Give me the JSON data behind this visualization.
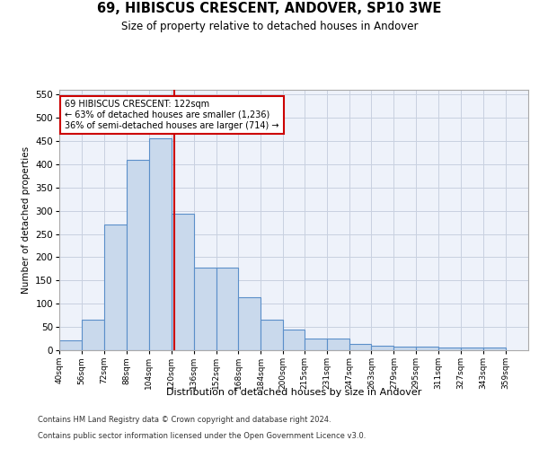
{
  "title": "69, HIBISCUS CRESCENT, ANDOVER, SP10 3WE",
  "subtitle": "Size of property relative to detached houses in Andover",
  "xlabel": "Distribution of detached houses by size in Andover",
  "ylabel": "Number of detached properties",
  "footnote1": "Contains HM Land Registry data © Crown copyright and database right 2024.",
  "footnote2": "Contains public sector information licensed under the Open Government Licence v3.0.",
  "bar_left_edges": [
    40,
    56,
    72,
    88,
    104,
    120,
    136,
    152,
    168,
    184,
    200,
    215,
    231,
    247,
    263,
    279,
    295,
    311,
    327,
    343
  ],
  "bar_widths": [
    16,
    16,
    16,
    16,
    16,
    16,
    16,
    16,
    16,
    16,
    15,
    16,
    16,
    16,
    16,
    16,
    16,
    16,
    16,
    16
  ],
  "bar_heights": [
    22,
    65,
    270,
    410,
    455,
    293,
    178,
    178,
    113,
    65,
    44,
    25,
    25,
    14,
    10,
    7,
    7,
    5,
    5,
    5
  ],
  "bar_facecolor": "#c9d9ec",
  "bar_edgecolor": "#5b8fc9",
  "grid_color": "#c8d0e0",
  "background_color": "#eef2fa",
  "vline_x": 122,
  "vline_color": "#cc0000",
  "annotation_line1": "69 HIBISCUS CRESCENT: 122sqm",
  "annotation_line2": "← 63% of detached houses are smaller (1,236)",
  "annotation_line3": "36% of semi-detached houses are larger (714) →",
  "annotation_box_edgecolor": "#cc0000",
  "annotation_box_facecolor": "#ffffff",
  "ylim": [
    0,
    560
  ],
  "yticks": [
    0,
    50,
    100,
    150,
    200,
    250,
    300,
    350,
    400,
    450,
    500,
    550
  ],
  "xtick_labels": [
    "40sqm",
    "56sqm",
    "72sqm",
    "88sqm",
    "104sqm",
    "120sqm",
    "136sqm",
    "152sqm",
    "168sqm",
    "184sqm",
    "200sqm",
    "215sqm",
    "231sqm",
    "247sqm",
    "263sqm",
    "279sqm",
    "295sqm",
    "311sqm",
    "327sqm",
    "343sqm",
    "359sqm"
  ]
}
